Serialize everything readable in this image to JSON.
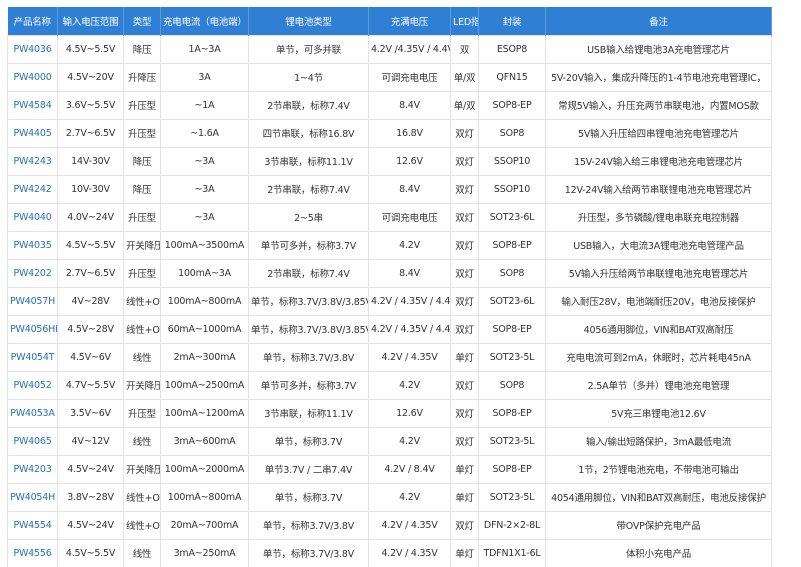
{
  "table": {
    "header": [
      "产品名称",
      "输入电压范围",
      "类型",
      "充电电流（电池端）",
      "锂电池类型",
      "充满电压",
      "LED指示灯",
      "封装",
      "备注"
    ],
    "rows": [
      [
        "PW4036",
        "4.5V~5.5V",
        "降压",
        "1A~3A",
        "单节，可多并联",
        "4.2V /4.35V / 4.4V",
        "双",
        "ESOP8",
        "USB输入给锂电池3A充电管理芯片"
      ],
      [
        "PW4000",
        "4.5V~20V",
        "升降压",
        "3A",
        "1~4节",
        "可调充电电压",
        "单/双",
        "QFN15",
        "5V-20V输入，集成升降压的1-4节电池充电管理IC，"
      ],
      [
        "PW4584",
        "3.6V~5.5V",
        "升压型",
        "~1A",
        "2节串联，标称7.4V",
        "8.4V",
        "单/双",
        "SOP8-EP",
        "常规5V输入，升压充两节串联电池，内置MOS款"
      ],
      [
        "PW4405",
        "2.7V~6.5V",
        "升压型",
        "~1.6A",
        "四节串联，标称16.8V",
        "16.8V",
        "双灯",
        "SOP8",
        "5V输入升压给四串锂电池充电管理芯片"
      ],
      [
        "PW4243",
        "14V-30V",
        "降压",
        "~3A",
        "3节串联，标称11.1V",
        "12.6V",
        "双灯",
        "SSOP10",
        "15V-24V输入给三串锂电池充电管理芯片"
      ],
      [
        "PW4242",
        "10V-30V",
        "降压",
        "~3A",
        "2节串联，标称7.4V",
        "8.4V",
        "双灯",
        "SSOP10",
        "12V-24V输入给两节串联锂电池充电管理芯片"
      ],
      [
        "PW4040",
        "4.0V~24V",
        "升压型",
        "~3A",
        "2~5串",
        "可调充电电压",
        "双灯",
        "SOT23-6L",
        "升压型，多节磷酸/锂电串联充电控制器"
      ],
      [
        "PW4035",
        "4.5V~5.5V",
        "开关降压型",
        "100mA~3500mA",
        "单节可多并，标称3.7V",
        "4.2V",
        "双灯",
        "SOP8-EP",
        "USB输入，大电流3A锂电池充电管理产品"
      ],
      [
        "PW4202",
        "2.7V~6.5V",
        "升压型",
        "100mA~3A",
        "2节串联，标称7.4V",
        "8.4V",
        "双灯",
        "SOP8",
        "5V输入升压给两节串联锂电池充电管理芯片"
      ],
      [
        "PW4057H",
        "4V~28V",
        "线性+OVP",
        "100mA~800mA",
        "单节，标称3.7V/3.8V/3.85V",
        "4.2V / 4.35V / 4.4V",
        "双灯",
        "SOT23-6L",
        "输入耐压28V，电池端耐压20V，电池反接保护"
      ],
      [
        "PW4056HH",
        "4.5V~28V",
        "线性+OVP",
        "60mA~1000mA",
        "单节，标称3.7V/3.8V/3.85V",
        "4.2V / 4.35V / 4.4V",
        "双灯",
        "SOP8-EP",
        "4056通用脚位，VIN和BAT双高耐压"
      ],
      [
        "PW4054T",
        "4.5V~6V",
        "线性",
        "2mA~300mA",
        "单节，标称3.7V/3.8V",
        "4.2V / 4.35V",
        "单灯",
        "SOT23-5L",
        "充电电流可到2mA，休眠时，芯片耗电45nA"
      ],
      [
        "PW4052",
        "4.7V~5.5V",
        "开关降压型",
        "100mA~2500mA",
        "单节可多并，标称3.7V",
        "4.2V",
        "双灯",
        "SOP8",
        "2.5A单节（多并）锂电池充电管理"
      ],
      [
        "PW4053A",
        "3.5V~6V",
        "升压型",
        "100mA~1200mA",
        "3节串联，标称11.1V",
        "12.6V",
        "双灯",
        "SOP8-EP",
        "5V充三串锂电池12.6V"
      ],
      [
        "PW4065",
        "4V~12V",
        "线性",
        "3mA~600mA",
        "单节，标称3.7V",
        "4.2V",
        "双灯",
        "SOT23-5L",
        "输入/输出短路保护，3mA最低电流"
      ],
      [
        "PW4203",
        "4.5V~24V",
        "开关降压型",
        "100mA~2000mA",
        "单节3.7V / 二串7.4V",
        "4.2V / 8.4V",
        "单灯",
        "SOP8-EP",
        "1节，2节锂电池充电，不带电池可输出"
      ],
      [
        "PW4054H",
        "3.8V~28V",
        "线性+OVP",
        "100mA~800mA",
        "单节，标称3.7V",
        "4.2V",
        "单灯",
        "SOT23-5L",
        "4054通用脚位，VIN和BAT双高耐压，电池反接保护"
      ],
      [
        "PW4554",
        "4.5V~24V",
        "线性+OVP",
        "20mA~700mA",
        "单节，标称3.7V/3.8V",
        "4.2V / 4.35V",
        "双灯",
        "DFN-2×2-8L",
        "带OVP保护充电产品"
      ],
      [
        "PW4556",
        "4.5V~5.5V",
        "线性",
        "3mA~250mA",
        "单节，标称3.7V/3.8V",
        "4.2V / 4.35V",
        "单灯",
        "TDFN1X1-6L",
        "体积小充电产品"
      ]
    ]
  }
}
